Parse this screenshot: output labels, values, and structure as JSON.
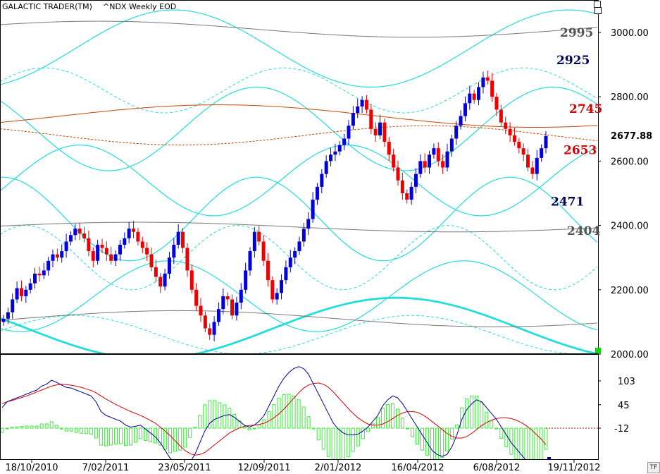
{
  "header": {
    "app_title": "GALACTIC TRADER(TM)",
    "instrument": "^NDX Weekly EOD",
    "tf_badge": "TF"
  },
  "colors": {
    "up_candle": "#0000dd",
    "down_candle": "#ee0000",
    "cyan": "#22dddd",
    "orange": "#cc4400",
    "gray": "#777777",
    "histogram": "#33ee33",
    "macd": "#000099",
    "signal": "#dd0000",
    "green_marker": "#00dd00"
  },
  "annotations": [
    {
      "text": "2995",
      "color": "#555555",
      "price": 3000
    },
    {
      "text": "2925",
      "color": "#000055",
      "price": 2915
    },
    {
      "text": "2745",
      "color": "#dd0000",
      "price": 2763
    },
    {
      "text": "2653",
      "color": "#dd0000",
      "price": 2635
    },
    {
      "text": "2471",
      "color": "#000055",
      "price": 2475
    },
    {
      "text": "2404",
      "color": "#555555",
      "price": 2384
    }
  ],
  "last_price_label": "2677.88",
  "chart_data": [
    {
      "type": "candlestick",
      "title": "^NDX Weekly EOD",
      "x_tick_labels": [
        "18/10/2010",
        "7/02/2011",
        "23/05/2011",
        "12/09/2011",
        "2/01/2012",
        "16/04/2012",
        "6/08/2012",
        "19/11/2012"
      ],
      "y_tick_labels": [
        "2000.00",
        "2200.00",
        "2400.00",
        "2600.00",
        "2800.00",
        "3000.00"
      ],
      "ylim": [
        2000,
        3100
      ],
      "last_value": 2677.88,
      "closes": [
        2110,
        2130,
        2170,
        2205,
        2180,
        2200,
        2220,
        2250,
        2245,
        2260,
        2290,
        2310,
        2300,
        2320,
        2350,
        2370,
        2390,
        2375,
        2360,
        2320,
        2290,
        2340,
        2330,
        2310,
        2290,
        2310,
        2340,
        2360,
        2390,
        2380,
        2350,
        2330,
        2310,
        2270,
        2240,
        2210,
        2250,
        2300,
        2340,
        2380,
        2330,
        2260,
        2200,
        2150,
        2120,
        2080,
        2060,
        2100,
        2140,
        2180,
        2170,
        2120,
        2160,
        2200,
        2260,
        2320,
        2380,
        2350,
        2290,
        2230,
        2170,
        2190,
        2230,
        2270,
        2300,
        2320,
        2350,
        2390,
        2420,
        2480,
        2520,
        2560,
        2600,
        2620,
        2630,
        2650,
        2670,
        2710,
        2750,
        2770,
        2790,
        2760,
        2700,
        2680,
        2720,
        2660,
        2620,
        2580,
        2540,
        2500,
        2480,
        2520,
        2560,
        2600,
        2580,
        2620,
        2640,
        2600,
        2580,
        2630,
        2670,
        2710,
        2740,
        2780,
        2810,
        2790,
        2830,
        2860,
        2850,
        2800,
        2760,
        2720,
        2700,
        2680,
        2660,
        2640,
        2620,
        2580,
        2560,
        2610,
        2640,
        2677.88
      ]
    },
    {
      "type": "macd",
      "y_tick_labels": [
        "103",
        "45",
        "-12"
      ],
      "macd": [
        40,
        55,
        60,
        65,
        70,
        75,
        80,
        85,
        95,
        100,
        110,
        105,
        98,
        92,
        90,
        85,
        80,
        75,
        70,
        55,
        30,
        20,
        15,
        10,
        5,
        -5,
        -10,
        -8,
        -5,
        -15,
        -25,
        -35,
        -50,
        -70,
        -90,
        -100,
        -110,
        -115,
        -100,
        -80,
        -50,
        -20,
        0,
        10,
        15,
        20,
        22,
        15,
        5,
        -5,
        -10,
        -5,
        5,
        20,
        45,
        70,
        95,
        115,
        130,
        140,
        145,
        140,
        125,
        100,
        75,
        50,
        25,
        0,
        -15,
        -25,
        -30,
        -30,
        -28,
        -20,
        -10,
        5,
        20,
        45,
        60,
        70,
        65,
        50,
        30,
        10,
        -10,
        -30,
        -50,
        -70,
        -80,
        -85,
        -80,
        -60,
        -30,
        10,
        35,
        50,
        60,
        55,
        40,
        25,
        10,
        -10,
        -30,
        -50,
        -65,
        -80,
        -95,
        -110,
        -120,
        -120,
        -105
      ],
      "signal": [
        50,
        55,
        58,
        62,
        66,
        70,
        75,
        80,
        85,
        90,
        95,
        98,
        100,
        99,
        97,
        95,
        92,
        88,
        84,
        78,
        70,
        62,
        55,
        48,
        42,
        36,
        30,
        25,
        20,
        14,
        7,
        0,
        -10,
        -20,
        -32,
        -45,
        -58,
        -70,
        -78,
        -82,
        -80,
        -75,
        -65,
        -55,
        -45,
        -35,
        -25,
        -18,
        -12,
        -8,
        -6,
        -5,
        -3,
        0,
        6,
        14,
        24,
        36,
        50,
        64,
        78,
        90,
        98,
        102,
        103,
        100,
        92,
        80,
        66,
        52,
        38,
        25,
        14,
        5,
        -2,
        -5,
        -5,
        -2,
        4,
        12,
        20,
        26,
        30,
        30,
        28,
        22,
        14,
        4,
        -6,
        -16,
        -26,
        -34,
        -38,
        -38,
        -34,
        -26,
        -16,
        -6,
        2,
        8,
        12,
        14,
        14,
        12,
        8,
        2,
        -6,
        -16,
        -28,
        -40,
        -55
      ]
    }
  ]
}
